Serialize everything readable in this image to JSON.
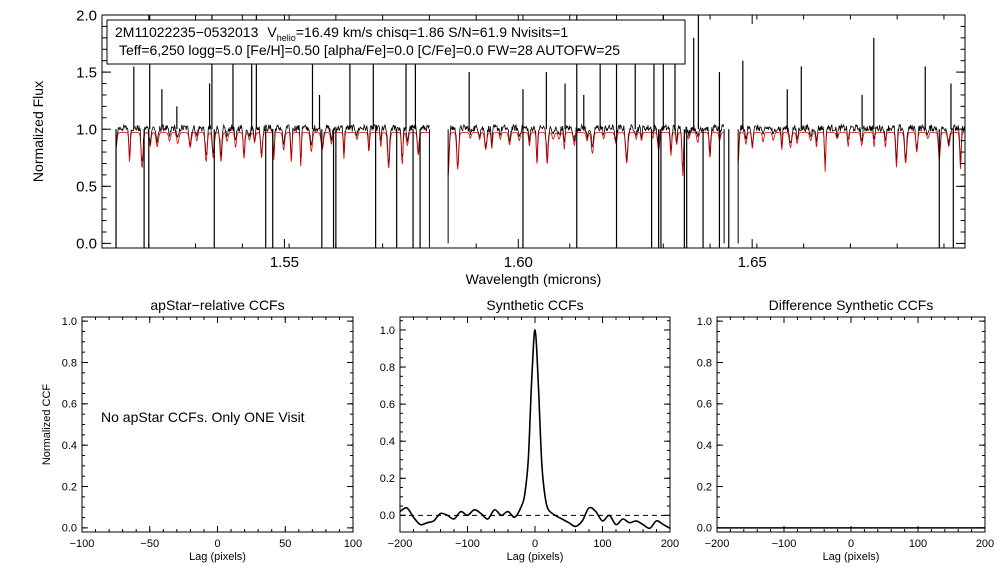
{
  "chart_data": [
    {
      "type": "line",
      "panel": "spectrum",
      "title": "",
      "xlabel": "Wavelength (microns)",
      "ylabel": "Normalized Flux",
      "xlim": [
        1.511,
        1.6955
      ],
      "ylim": [
        -0.04,
        2.0
      ],
      "xticks": [
        1.55,
        1.6,
        1.65
      ],
      "xtick_labels": [
        "1.55",
        "1.60",
        "1.65"
      ],
      "yticks": [
        0.0,
        0.5,
        1.0,
        1.5,
        2.0
      ],
      "ytick_labels": [
        "0.0",
        "0.5",
        "1.0",
        "1.5",
        "2.0"
      ],
      "legend_box": {
        "line1_object": "2M11022235−0532013",
        "line1_v": "V",
        "line1_sub": "helio",
        "line1_rest": "=16.49 km/s  chisq=1.86  S/N=61.9  Nvisits=1",
        "line2": "Teff=6,250 logg=5.0 [Fe/H]=0.50 [alpha/Fe]=0.0 [C/Fe]=0.0 FW=28 AUTOFW=25"
      },
      "chip_ranges": [
        [
          1.514,
          1.581
        ],
        [
          1.585,
          1.644
        ],
        [
          1.647,
          1.696
        ]
      ],
      "continuum_level": 1.0,
      "series": [
        {
          "name": "observed",
          "color": "#000000"
        },
        {
          "name": "model",
          "color": "#e00000"
        }
      ],
      "bad_pixels": [
        1.514,
        1.52,
        1.521,
        1.535,
        1.546,
        1.5475,
        1.558,
        1.5605,
        1.561,
        1.5695,
        1.574,
        1.5775,
        1.579,
        1.601,
        1.6125,
        1.621,
        1.6285,
        1.63,
        1.6305,
        1.6355,
        1.636,
        1.6395,
        1.643,
        1.645,
        1.69,
        1.693
      ],
      "emission_spikes": [
        [
          1.5178,
          1.55
        ],
        [
          1.5212,
          2.0
        ],
        [
          1.5238,
          1.35
        ],
        [
          1.527,
          1.2
        ],
        [
          1.534,
          1.4
        ],
        [
          1.5345,
          2.0
        ],
        [
          1.539,
          1.6
        ],
        [
          1.543,
          1.7
        ],
        [
          1.544,
          2.0
        ],
        [
          1.556,
          1.6
        ],
        [
          1.5575,
          1.3
        ],
        [
          1.564,
          1.6
        ],
        [
          1.569,
          1.7
        ],
        [
          1.576,
          1.6
        ],
        [
          1.578,
          1.7
        ],
        [
          1.5895,
          1.5
        ],
        [
          1.601,
          1.35
        ],
        [
          1.606,
          1.5
        ],
        [
          1.61,
          1.4
        ],
        [
          1.6125,
          2.0
        ],
        [
          1.614,
          1.3
        ],
        [
          1.6175,
          1.6
        ],
        [
          1.621,
          1.65
        ],
        [
          1.625,
          1.7
        ],
        [
          1.629,
          1.8
        ],
        [
          1.631,
          2.0
        ],
        [
          1.6335,
          1.7
        ],
        [
          1.6375,
          1.8
        ],
        [
          1.6385,
          2.0
        ],
        [
          1.643,
          1.5
        ],
        [
          1.648,
          1.6
        ],
        [
          1.6575,
          1.35
        ],
        [
          1.6605,
          1.55
        ],
        [
          1.6735,
          1.3
        ],
        [
          1.676,
          1.8
        ],
        [
          1.687,
          1.55
        ],
        [
          1.6925,
          1.4
        ]
      ]
    },
    {
      "type": "line",
      "panel": "apstar",
      "title": "apStar−relative CCFs",
      "xlabel": "Lag (pixels)",
      "ylabel": "Normalized CCF",
      "xlim": [
        -100,
        100
      ],
      "ylim": [
        -0.02,
        1.02
      ],
      "xticks": [
        -100,
        -50,
        0,
        50,
        100
      ],
      "xtick_labels": [
        "−100",
        "−50",
        "0",
        "50",
        "100"
      ],
      "yticks": [
        0.0,
        0.2,
        0.4,
        0.6,
        0.8,
        1.0
      ],
      "ytick_labels": [
        "0.0",
        "0.2",
        "0.4",
        "0.6",
        "0.8",
        "1.0"
      ],
      "annotation": "No apStar CCFs.  Only ONE Visit",
      "series": []
    },
    {
      "type": "line",
      "panel": "synthetic",
      "title": "Synthetic CCFs",
      "xlabel": "Lag (pixels)",
      "ylabel": "",
      "xlim": [
        -200,
        200
      ],
      "ylim": [
        -0.09,
        1.07
      ],
      "xticks": [
        -200,
        -100,
        0,
        100,
        200
      ],
      "xtick_labels": [
        "−200",
        "−100",
        "0",
        "100",
        "200"
      ],
      "yticks": [
        0.0,
        0.2,
        0.4,
        0.6,
        0.8,
        1.0
      ],
      "ytick_labels": [
        "0.0",
        "0.2",
        "0.4",
        "0.6",
        "0.8",
        "1.0"
      ],
      "baseline": 0.0,
      "series": [
        {
          "name": "synthetic CCF",
          "x": [
            -200,
            -190,
            -180,
            -170,
            -160,
            -150,
            -140,
            -130,
            -120,
            -110,
            -100,
            -90,
            -80,
            -70,
            -60,
            -50,
            -40,
            -30,
            -20,
            -15,
            -10,
            -5,
            0,
            5,
            10,
            15,
            20,
            30,
            40,
            50,
            60,
            70,
            80,
            90,
            100,
            110,
            120,
            130,
            140,
            150,
            160,
            170,
            180,
            190,
            200
          ],
          "y": [
            0.02,
            0.04,
            -0.01,
            -0.05,
            -0.04,
            -0.03,
            0.01,
            0.0,
            -0.02,
            0.02,
            0.0,
            0.03,
            0.01,
            -0.02,
            0.03,
            0.0,
            0.02,
            -0.01,
            0.05,
            0.12,
            0.3,
            0.72,
            1.0,
            0.7,
            0.28,
            0.1,
            0.03,
            0.0,
            -0.02,
            -0.04,
            -0.06,
            -0.03,
            0.04,
            0.02,
            -0.03,
            0.0,
            -0.05,
            -0.02,
            -0.04,
            -0.03,
            -0.05,
            -0.07,
            -0.03,
            -0.05,
            -0.07
          ]
        }
      ]
    },
    {
      "type": "line",
      "panel": "difference",
      "title": "Difference Synthetic CCFs",
      "xlabel": "Lag (pixels)",
      "ylabel": "",
      "xlim": [
        -200,
        200
      ],
      "ylim": [
        -0.02,
        1.02
      ],
      "xticks": [
        -200,
        -100,
        0,
        100,
        200
      ],
      "xtick_labels": [
        "−200",
        "−100",
        "0",
        "100",
        "200"
      ],
      "yticks": [
        0.0,
        0.2,
        0.4,
        0.6,
        0.8,
        1.0
      ],
      "ytick_labels": [
        "0.0",
        "0.2",
        "0.4",
        "0.6",
        "0.8",
        "1.0"
      ],
      "series": [
        {
          "name": "difference CCF",
          "x": [
            -200,
            200
          ],
          "y": [
            0.0,
            0.0
          ]
        }
      ]
    }
  ]
}
